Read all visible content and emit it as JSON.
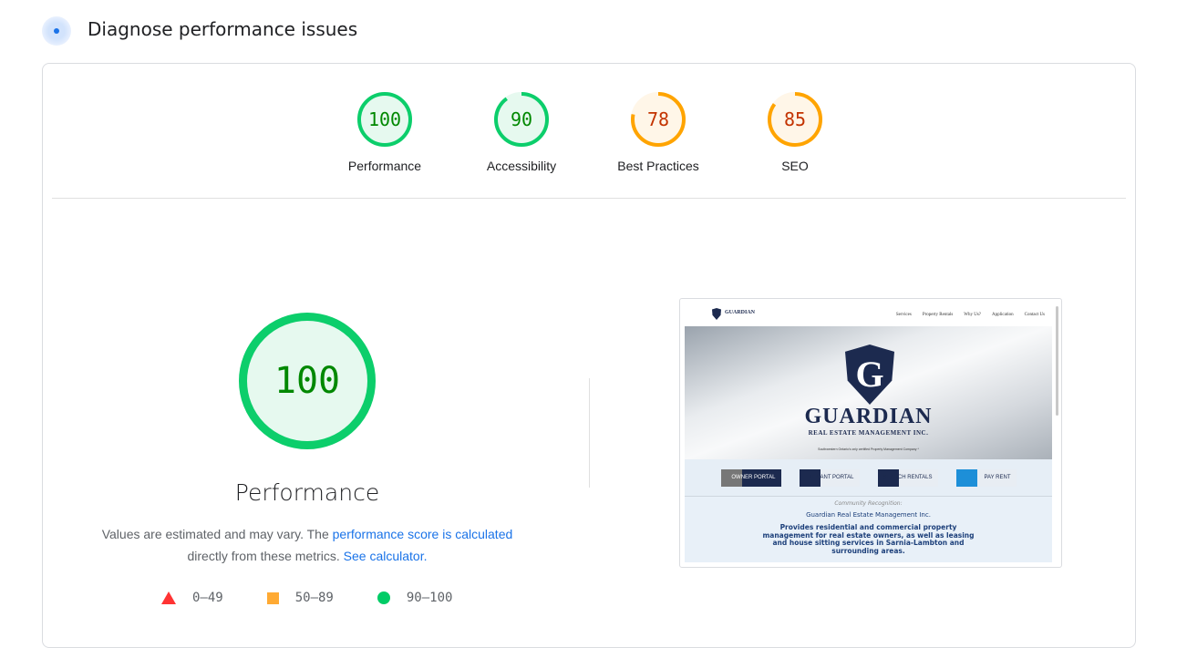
{
  "header": {
    "title": "Diagnose performance issues",
    "icon": "gauge-icon"
  },
  "colors": {
    "pass": "#0cce6b",
    "pass_text": "#008800",
    "average": "#ffa400",
    "average_text": "#c33300",
    "fail": "#ff3333",
    "link": "#1a73e8"
  },
  "categories": [
    {
      "label": "Performance",
      "score": 100
    },
    {
      "label": "Accessibility",
      "score": 90
    },
    {
      "label": "Best Practices",
      "score": 78
    },
    {
      "label": "SEO",
      "score": 85
    }
  ],
  "main": {
    "score": 100,
    "title": "Performance",
    "desc_pre": "Values are estimated and may vary. The ",
    "desc_link": "performance score is calculated",
    "desc_mid": " directly from these metrics. ",
    "desc_link2": "See calculator.",
    "legend": [
      {
        "label": "0–49",
        "shape": "triangle"
      },
      {
        "label": "50–89",
        "shape": "square"
      },
      {
        "label": "90–100",
        "shape": "circle"
      }
    ]
  },
  "screenshot": {
    "logo": "GUARDIAN",
    "nav": [
      "Services",
      "Property Rentals",
      "Why Us?",
      "Application",
      "Contact Us"
    ],
    "shield_letter": "G",
    "brand": "GUARDIAN",
    "sub": "REAL ESTATE MANAGEMENT INC.",
    "tagline": "Southwestern Ontario's only certified Property Management Company *",
    "buttons": [
      "OWNER PORTAL",
      "TENANT PORTAL",
      "SEARCH RENTALS",
      "PAY RENT"
    ],
    "recognition": "Community Recognition:",
    "company": "Guardian Real Estate Management Inc.",
    "paragraph": "Provides residential and commercial property management for real estate owners, as well as leasing and house sitting services in Sarnia-Lambton and surrounding areas."
  }
}
